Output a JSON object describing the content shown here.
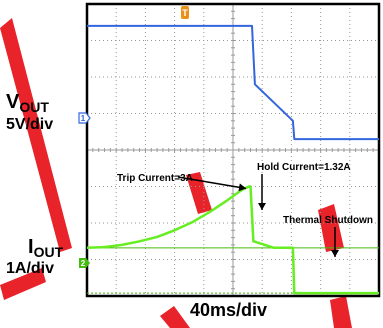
{
  "labels": {
    "vout_main": "V",
    "vout_sub": "OUT",
    "vout_scale": "5V/div",
    "iout_main": "I",
    "iout_sub": "OUT",
    "iout_scale": "1A/div",
    "time_scale": "40ms/div"
  },
  "channel_markers": {
    "ch1": "1",
    "ch2": "2",
    "trigger": "T"
  },
  "colors": {
    "vout_trace": "#3366dd",
    "iout_trace": "#66ee22",
    "iout_trace_dark": "#44bb11",
    "grid": "#9a9a9a",
    "frame": "#000000",
    "watermark": "#e8232a"
  },
  "chart_data": {
    "type": "line",
    "title": "",
    "xlabel": "40ms/div",
    "xlim": [
      0,
      10
    ],
    "ylim": [
      0,
      8
    ],
    "grid": true,
    "series": [
      {
        "name": "VOUT",
        "channel": "1",
        "x": [
          0,
          5.65,
          5.75,
          7.05,
          7.1,
          10
        ],
        "y": [
          7.4,
          7.4,
          5.8,
          4.8,
          4.3,
          4.3
        ]
      },
      {
        "name": "IOUT",
        "channel": "2",
        "x": [
          0,
          0.6,
          1.2,
          1.8,
          2.4,
          3.0,
          3.6,
          4.2,
          4.8,
          5.2,
          5.4,
          5.55,
          5.6,
          5.7,
          6.4,
          7.05,
          7.1,
          10
        ],
        "y": [
          1.32,
          1.34,
          1.4,
          1.5,
          1.62,
          1.8,
          2.02,
          2.3,
          2.62,
          2.85,
          2.95,
          3.0,
          3.0,
          1.5,
          1.32,
          1.32,
          0.08,
          0.08
        ]
      }
    ],
    "annotations": [
      {
        "text": "Trip Current=3A",
        "x": 5.55,
        "y": 3.0
      },
      {
        "text": "Hold Current=1.32A",
        "x": 6.6,
        "y": 1.32
      },
      {
        "text": "Thermal Shutdown",
        "x": 8.5,
        "y": 0.08
      }
    ]
  }
}
